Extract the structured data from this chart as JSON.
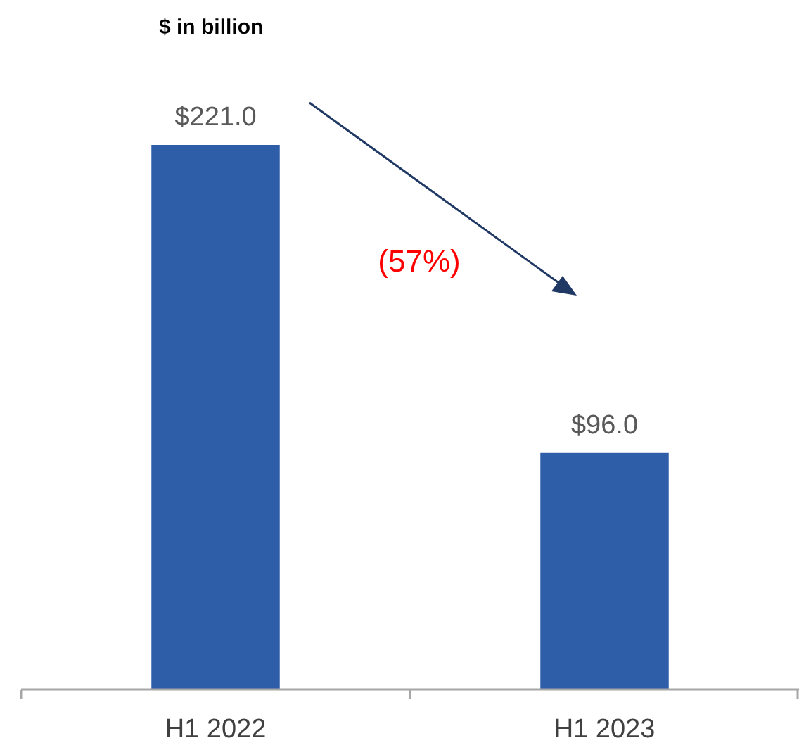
{
  "chart_data": {
    "type": "bar",
    "title": "$ in billion",
    "categories": [
      "H1 2022",
      "H1 2023"
    ],
    "values": [
      221.0,
      96.0
    ],
    "color": "#2f5ea8",
    "value_labels": [
      "$221.0",
      "$96.0"
    ],
    "annotations": [
      "(57%)"
    ]
  }
}
